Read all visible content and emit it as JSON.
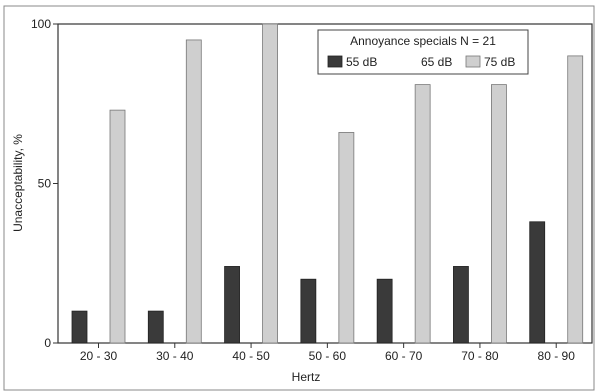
{
  "chart_data": {
    "type": "bar",
    "title": "",
    "xlabel": "Hertz",
    "ylabel": "Unacceptability, %",
    "ylim": [
      0,
      100
    ],
    "yticks": [
      "0",
      "50",
      "100"
    ],
    "categories": [
      "20 - 30",
      "30 - 40",
      "40 - 50",
      "50 - 60",
      "60 - 70",
      "70 - 80",
      "80 - 90"
    ],
    "legend": {
      "title": "Annoyance specials  N = 21",
      "placement": "top-right"
    },
    "series": [
      {
        "name": "55 dB",
        "color": "#3a3a3a",
        "values": [
          10,
          10,
          24,
          20,
          20,
          24,
          38
        ]
      },
      {
        "name": "65 dB",
        "color": "#ffffff",
        "values": [
          0,
          0,
          0,
          0,
          0,
          0,
          0
        ]
      },
      {
        "name": "75 dB",
        "color": "#cfcfcf",
        "values": [
          73,
          95,
          100,
          66,
          81,
          81,
          90
        ]
      }
    ]
  }
}
